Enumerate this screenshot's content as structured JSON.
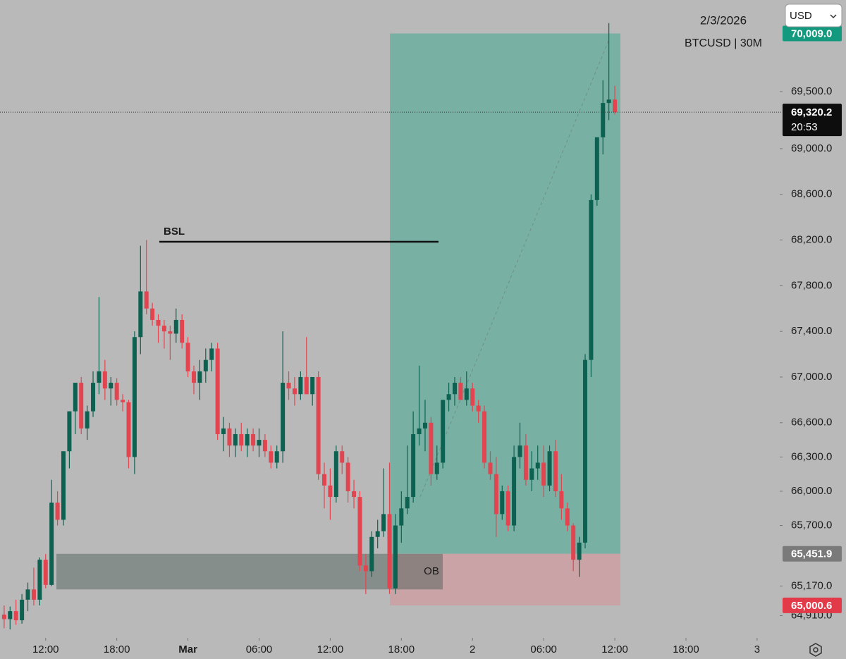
{
  "chart_data": {
    "type": "candlestick",
    "header": {
      "date": "2/3/2026",
      "symbol": "BTCUSD | 30M",
      "currency": "USD"
    },
    "up_color": "#0d6150",
    "down_color": "#e2454f",
    "candles": [
      [
        64920,
        65000,
        64800,
        64880
      ],
      [
        64880,
        64990,
        64790,
        64950
      ],
      [
        64950,
        65050,
        64830,
        64870
      ],
      [
        64870,
        65100,
        64840,
        65050
      ],
      [
        65050,
        65200,
        64950,
        65140
      ],
      [
        65140,
        65330,
        65000,
        65050
      ],
      [
        65050,
        65420,
        65000,
        65400
      ],
      [
        65400,
        65450,
        65150,
        65180
      ],
      [
        65180,
        66100,
        65170,
        65900
      ],
      [
        65900,
        66000,
        65700,
        65750
      ],
      [
        65750,
        66350,
        65700,
        66350
      ],
      [
        66350,
        66700,
        66200,
        66700
      ],
      [
        66700,
        66950,
        66500,
        66950
      ],
      [
        66950,
        67000,
        66500,
        66550
      ],
      [
        66550,
        66750,
        66450,
        66700
      ],
      [
        66700,
        67050,
        66650,
        66950
      ],
      [
        66950,
        67700,
        66850,
        67050
      ],
      [
        67050,
        67150,
        66800,
        66900
      ],
      [
        66900,
        67000,
        66750,
        66950
      ],
      [
        66950,
        66990,
        66750,
        66800
      ],
      [
        66800,
        66850,
        66700,
        66780
      ],
      [
        66780,
        66800,
        66200,
        66300
      ],
      [
        66300,
        67400,
        66150,
        67350
      ],
      [
        67350,
        68150,
        67200,
        67750
      ],
      [
        67750,
        68200,
        67550,
        67600
      ],
      [
        67600,
        67650,
        67450,
        67500
      ],
      [
        67500,
        67550,
        67300,
        67450
      ],
      [
        67450,
        67500,
        67250,
        67400
      ],
      [
        67400,
        67450,
        67150,
        67380
      ],
      [
        67380,
        67600,
        67300,
        67500
      ],
      [
        67500,
        67550,
        67250,
        67300
      ],
      [
        67300,
        67350,
        67000,
        67050
      ],
      [
        67050,
        67100,
        66850,
        66950
      ],
      [
        66950,
        67150,
        66800,
        67050
      ],
      [
        67050,
        67250,
        66950,
        67150
      ],
      [
        67150,
        67300,
        67050,
        67250
      ],
      [
        67250,
        67300,
        66450,
        66500
      ],
      [
        66500,
        66650,
        66350,
        66550
      ],
      [
        66550,
        66600,
        66300,
        66400
      ],
      [
        66400,
        66550,
        66300,
        66500
      ],
      [
        66500,
        66600,
        66350,
        66400
      ],
      [
        66400,
        66550,
        66300,
        66500
      ],
      [
        66500,
        66550,
        66350,
        66400
      ],
      [
        66400,
        66550,
        66300,
        66450
      ],
      [
        66450,
        66500,
        66300,
        66350
      ],
      [
        66350,
        66400,
        66200,
        66250
      ],
      [
        66250,
        66400,
        66200,
        66350
      ],
      [
        66350,
        67400,
        66250,
        66950
      ],
      [
        66950,
        67050,
        66800,
        66900
      ],
      [
        66900,
        67000,
        66750,
        66850
      ],
      [
        66850,
        67050,
        66800,
        67000
      ],
      [
        67000,
        67350,
        66850,
        66850
      ],
      [
        66850,
        67000,
        66750,
        67000
      ],
      [
        67000,
        67050,
        66100,
        66150
      ],
      [
        66150,
        66250,
        65850,
        66050
      ],
      [
        66050,
        66200,
        65750,
        65950
      ],
      [
        65950,
        66400,
        65900,
        66350
      ],
      [
        66350,
        66400,
        66150,
        66250
      ],
      [
        66250,
        66300,
        65900,
        66000
      ],
      [
        66000,
        66100,
        65850,
        65950
      ],
      [
        65950,
        66000,
        65300,
        65350
      ],
      [
        65350,
        65450,
        65100,
        65300
      ],
      [
        65300,
        65650,
        65250,
        65600
      ],
      [
        65600,
        65750,
        65500,
        65650
      ],
      [
        65650,
        66200,
        65600,
        65800
      ],
      [
        65800,
        66250,
        65100,
        65150
      ],
      [
        65150,
        65800,
        65100,
        65700
      ],
      [
        65700,
        66000,
        65550,
        65850
      ],
      [
        65850,
        66400,
        65800,
        65950
      ],
      [
        65950,
        66700,
        65900,
        66500
      ],
      [
        66500,
        67100,
        66400,
        66550
      ],
      [
        66550,
        66800,
        66350,
        66600
      ],
      [
        66600,
        66650,
        66050,
        66150
      ],
      [
        66150,
        66400,
        66100,
        66250
      ],
      [
        66250,
        66800,
        66200,
        66800
      ],
      [
        66800,
        66950,
        66700,
        66850
      ],
      [
        66850,
        67000,
        66750,
        66950
      ],
      [
        66950,
        67000,
        66800,
        66800
      ],
      [
        66800,
        67050,
        66750,
        66900
      ],
      [
        66900,
        66950,
        66700,
        66750
      ],
      [
        66750,
        66800,
        66600,
        66700
      ],
      [
        66700,
        66750,
        66200,
        66250
      ],
      [
        66250,
        66350,
        66100,
        66150
      ],
      [
        66150,
        66300,
        65600,
        65800
      ],
      [
        65800,
        66050,
        65750,
        66000
      ],
      [
        66000,
        66050,
        65650,
        65700
      ],
      [
        65700,
        66400,
        65650,
        66300
      ],
      [
        66300,
        66600,
        66200,
        66400
      ],
      [
        66400,
        66500,
        66050,
        66100
      ],
      [
        66100,
        66350,
        66000,
        66200
      ],
      [
        66200,
        66400,
        66100,
        66250
      ],
      [
        66250,
        66400,
        65950,
        66050
      ],
      [
        66050,
        66400,
        66000,
        66350
      ],
      [
        66350,
        66450,
        65950,
        66000
      ],
      [
        66000,
        66150,
        65750,
        65850
      ],
      [
        65850,
        65900,
        65650,
        65700
      ],
      [
        65700,
        65720,
        65300,
        65400
      ],
      [
        65400,
        65600,
        65250,
        65550
      ],
      [
        65550,
        67200,
        65500,
        67150
      ],
      [
        67150,
        68600,
        67000,
        68550
      ],
      [
        68550,
        69100,
        68500,
        69100
      ],
      [
        69100,
        69600,
        68950,
        69400
      ],
      [
        69400,
        70100,
        69250,
        69430
      ],
      [
        69430,
        69550,
        69300,
        69320
      ]
    ],
    "xlim": [
      -0.7,
      130.7
    ],
    "xticks": [
      {
        "value": 7,
        "label": "12:00"
      },
      {
        "value": 19,
        "label": "18:00"
      },
      {
        "value": 31,
        "label": "Mar"
      },
      {
        "value": 43,
        "label": "06:00"
      },
      {
        "value": 55,
        "label": "12:00"
      },
      {
        "value": 67,
        "label": "18:00"
      },
      {
        "value": 79,
        "label": "2"
      },
      {
        "value": 91,
        "label": "06:00"
      },
      {
        "value": 103,
        "label": "12:00"
      },
      {
        "value": 115,
        "label": "18:00"
      },
      {
        "value": 127,
        "label": "3"
      }
    ],
    "ylim": [
      64716,
      70302
    ],
    "yticks": [
      {
        "value": 64910,
        "label": "64,910.0"
      },
      {
        "value": 65170,
        "label": "65,170.0"
      },
      {
        "value": 65700,
        "label": "65,700.0"
      },
      {
        "value": 66000,
        "label": "66,000.0"
      },
      {
        "value": 66300,
        "label": "66,300.0"
      },
      {
        "value": 66600,
        "label": "66,600.0"
      },
      {
        "value": 67000,
        "label": "67,000.0"
      },
      {
        "value": 67400,
        "label": "67,400.0"
      },
      {
        "value": 67800,
        "label": "67,800.0"
      },
      {
        "value": 68200,
        "label": "68,200.0"
      },
      {
        "value": 68600,
        "label": "68,600.0"
      },
      {
        "value": 69000,
        "label": "69,000.0"
      },
      {
        "value": 69500,
        "label": "69,500.0"
      }
    ],
    "position": {
      "target": {
        "value": 70009.0,
        "label": "70,009.0"
      },
      "entry": {
        "value": 65451.9,
        "label": "65,451.9"
      },
      "stop": {
        "value": 65000.6,
        "label": "65,000.6"
      }
    },
    "last_price": {
      "value": 69320.2,
      "label": "69,320.2",
      "countdown": "20:53"
    },
    "bsl": {
      "label": "BSL",
      "value": 68185
    },
    "ob": {
      "label": "OB",
      "top": 65451.9,
      "bottom": 65140
    }
  }
}
